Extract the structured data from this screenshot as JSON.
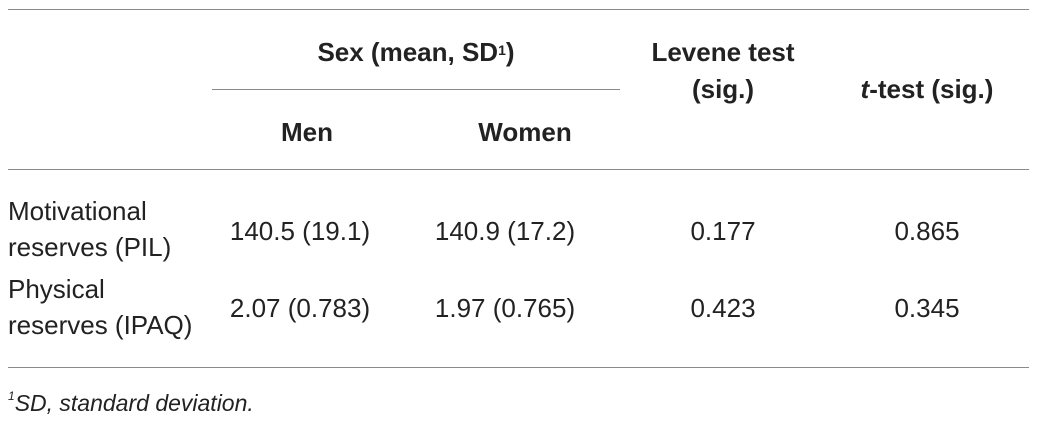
{
  "header": {
    "group_label": "Sex (mean, SD",
    "group_label_sup": "1",
    "group_label_close": ")",
    "col_men": "Men",
    "col_women": "Women",
    "col_levene_line1": "Levene test",
    "col_levene_line2": "(sig.)",
    "col_ttest_italic": "t",
    "col_ttest_rest": "-test (sig.)"
  },
  "rows": [
    {
      "label_line1": "Motivational",
      "label_line2": "reserves (PIL)",
      "men": "140.5 (19.1)",
      "women": "140.9 (17.2)",
      "levene": "0.177",
      "ttest": "0.865"
    },
    {
      "label_line1": "Physical",
      "label_line2": "reserves (IPAQ)",
      "men": "2.07 (0.783)",
      "women": "1.97 (0.765)",
      "levene": "0.423",
      "ttest": "0.345"
    }
  ],
  "footnote": {
    "sup": "1",
    "text": "SD, standard deviation."
  }
}
